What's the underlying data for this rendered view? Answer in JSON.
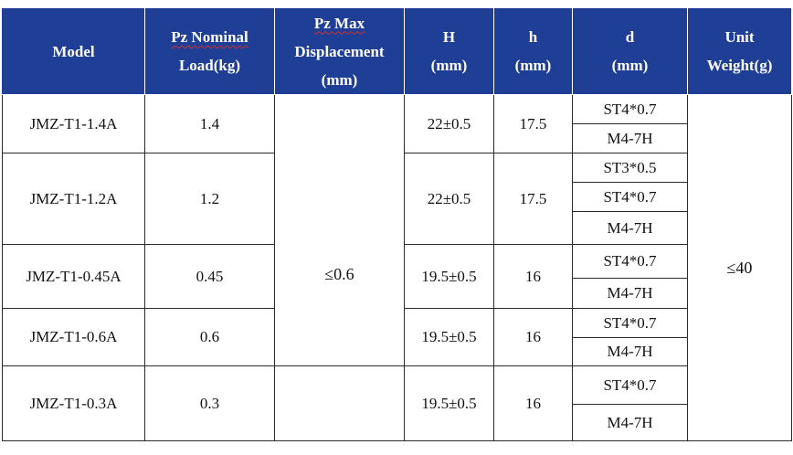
{
  "table": {
    "headers": {
      "model": "Model",
      "pz_nominal_line1": "Pz Nominal",
      "pz_nominal_line2": "Load(kg)",
      "pz_max_line1": "Pz Max",
      "pz_max_line2": "Displacement",
      "pz_max_line3": "(mm)",
      "H_line1": "H",
      "H_line2": "(mm)",
      "h_line1": "h",
      "h_line2": "(mm)",
      "d_line1": "d",
      "d_line2": "(mm)",
      "unit_line1": "Unit",
      "unit_line2": "Weight(g)"
    },
    "shared": {
      "pz_max_displacement": "≤0.6",
      "unit_weight": "≤40"
    },
    "groups": [
      {
        "model": "JMZ-T1-1.4A",
        "load": "1.4",
        "H": "22±0.5",
        "h": "17.5",
        "d": [
          "ST4*0.7",
          "M4-7H"
        ]
      },
      {
        "model": "JMZ-T1-1.2A",
        "load": "1.2",
        "H": "22±0.5",
        "h": "17.5",
        "d": [
          "ST3*0.5",
          "ST4*0.7",
          "M4-7H"
        ]
      },
      {
        "model": "JMZ-T1-0.45A",
        "load": "0.45",
        "H": "19.5±0.5",
        "h": "16",
        "d": [
          "ST4*0.7",
          "M4-7H"
        ]
      },
      {
        "model": "JMZ-T1-0.6A",
        "load": "0.6",
        "H": "19.5±0.5",
        "h": "16",
        "d": [
          "ST4*0.7",
          "M4-7H"
        ]
      },
      {
        "model": "JMZ-T1-0.3A",
        "load": "0.3",
        "H": "19.5±0.5",
        "h": "16",
        "d": [
          "ST4*0.7",
          "M4-7H"
        ]
      }
    ]
  }
}
